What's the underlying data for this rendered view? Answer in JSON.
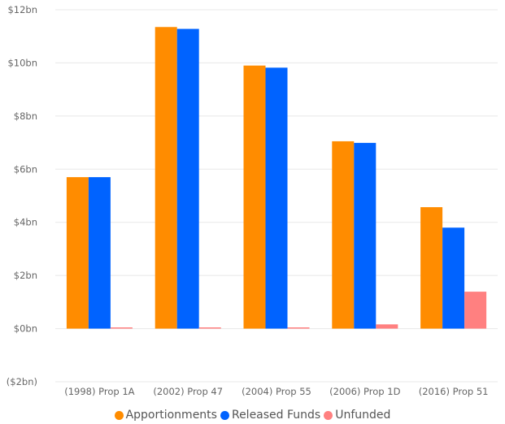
{
  "chart_data": {
    "type": "bar",
    "categories": [
      "(1998) Prop 1A",
      "(2002) Prop 47",
      "(2004) Prop 55",
      "(2006) Prop 1D",
      "(2016) Prop 51"
    ],
    "series": [
      {
        "name": "Apportionments",
        "color": "#FF8C00",
        "values": [
          5.7,
          11.35,
          9.9,
          7.05,
          4.57
        ]
      },
      {
        "name": "Released Funds",
        "color": "#0063FF",
        "values": [
          5.7,
          11.28,
          9.82,
          6.99,
          3.8
        ]
      },
      {
        "name": "Unfunded",
        "color": "#FF8080",
        "values": [
          0.02,
          0.04,
          0.04,
          0.16,
          1.39
        ]
      }
    ],
    "ylim": [
      -2,
      12
    ],
    "yticks": [
      {
        "value": 12,
        "label": "$12bn"
      },
      {
        "value": 10,
        "label": "$10bn"
      },
      {
        "value": 8,
        "label": "$8bn"
      },
      {
        "value": 6,
        "label": "$6bn"
      },
      {
        "value": 4,
        "label": "$4bn"
      },
      {
        "value": 2,
        "label": "$2bn"
      },
      {
        "value": 0,
        "label": "$0bn"
      },
      {
        "value": -2,
        "label": "($2bn)"
      }
    ],
    "grid": true,
    "legend_position": "bottom"
  }
}
